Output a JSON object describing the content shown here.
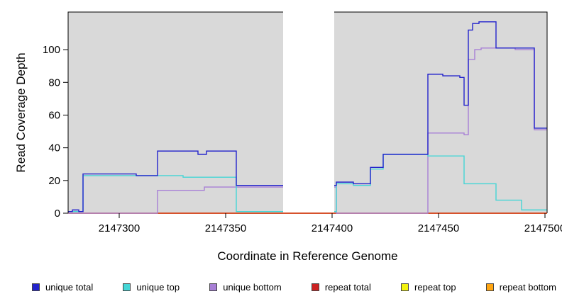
{
  "chart_data": {
    "type": "line",
    "subtype": "step",
    "title": "",
    "xlabel": "Coordinate in Reference Genome",
    "ylabel": "Read Coverage Depth",
    "xlim": [
      2147276,
      2147501
    ],
    "ylim": [
      0,
      123
    ],
    "x_end": 2147501,
    "x_ticks": [
      2147300,
      2147350,
      2147400,
      2147450,
      2147500
    ],
    "y_ticks": [
      0,
      20,
      40,
      60,
      80,
      100
    ],
    "plot_bg": "#d9d9d9",
    "grid": false,
    "legend_position": "bottom",
    "gap_region": {
      "start": 2147377,
      "end": 2147401,
      "color": "#ffffff"
    },
    "series": [
      {
        "name": "unique total",
        "color": "#2323cc",
        "points": [
          [
            2147276,
            1
          ],
          [
            2147278,
            2
          ],
          [
            2147281,
            1
          ],
          [
            2147283,
            24
          ],
          [
            2147308,
            23
          ],
          [
            2147318,
            38
          ],
          [
            2147337,
            36
          ],
          [
            2147341,
            38
          ],
          [
            2147355,
            17
          ],
          [
            2147402,
            19
          ],
          [
            2147410,
            18
          ],
          [
            2147418,
            28
          ],
          [
            2147424,
            36
          ],
          [
            2147445,
            85
          ],
          [
            2147452,
            84
          ],
          [
            2147460,
            83
          ],
          [
            2147462,
            66
          ],
          [
            2147464,
            112
          ],
          [
            2147466,
            116
          ],
          [
            2147469,
            117
          ],
          [
            2147477,
            101
          ],
          [
            2147495,
            52
          ]
        ]
      },
      {
        "name": "unique top",
        "color": "#45d6d6",
        "points": [
          [
            2147276,
            1
          ],
          [
            2147283,
            23
          ],
          [
            2147330,
            22
          ],
          [
            2147355,
            1
          ],
          [
            2147402,
            18
          ],
          [
            2147410,
            17
          ],
          [
            2147418,
            27
          ],
          [
            2147424,
            36
          ],
          [
            2147445,
            35
          ],
          [
            2147462,
            18
          ],
          [
            2147477,
            8
          ],
          [
            2147489,
            2
          ]
        ]
      },
      {
        "name": "unique bottom",
        "color": "#a87fd6",
        "points": [
          [
            2147276,
            0
          ],
          [
            2147318,
            14
          ],
          [
            2147340,
            16
          ],
          [
            2147402,
            0
          ],
          [
            2147445,
            49
          ],
          [
            2147462,
            48
          ],
          [
            2147464,
            94
          ],
          [
            2147467,
            100
          ],
          [
            2147470,
            101
          ],
          [
            2147486,
            100
          ],
          [
            2147495,
            51
          ]
        ]
      },
      {
        "name": "repeat total",
        "color": "#cc2222",
        "points": [
          [
            2147276,
            0
          ]
        ]
      },
      {
        "name": "repeat top",
        "color": "#f2f20d",
        "points": [
          [
            2147276,
            0
          ]
        ]
      },
      {
        "name": "repeat bottom",
        "color": "#ffa512",
        "points": [
          [
            2147276,
            0
          ]
        ]
      }
    ]
  }
}
